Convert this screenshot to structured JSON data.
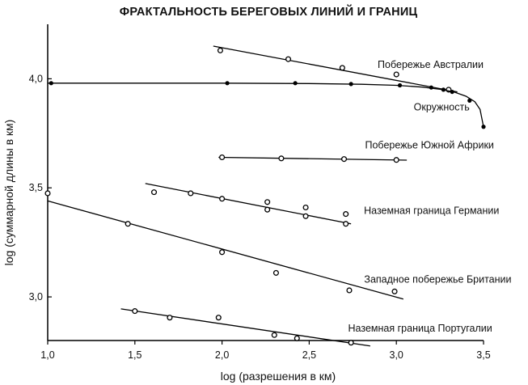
{
  "chart_data": {
    "type": "scatter",
    "title": "ФРАКТАЛЬНОСТЬ БЕРЕГОВЫХ ЛИНИЙ И ГРАНИЦ",
    "xlabel": "log (разрешения в км)",
    "ylabel": "log (суммарной длины в км)",
    "xlim": [
      1.0,
      3.5
    ],
    "ylim": [
      2.8,
      4.25
    ],
    "x_ticks": [
      1.0,
      1.5,
      2.0,
      2.5,
      3.0,
      3.5
    ],
    "x_tick_labels": [
      "1,0",
      "1,5",
      "2,0",
      "2,5",
      "3,0",
      "3,5"
    ],
    "y_ticks": [
      3.0,
      3.5,
      4.0
    ],
    "y_tick_labels": [
      "3,0",
      "3,5",
      "4,0"
    ],
    "grid": false,
    "series": [
      {
        "name": "Побережье Австралии",
        "marker": "open",
        "points": [
          [
            1.99,
            4.13
          ],
          [
            2.38,
            4.09
          ],
          [
            2.69,
            4.05
          ],
          [
            3.0,
            4.02
          ],
          [
            3.3,
            3.95
          ]
        ],
        "fit": [
          [
            1.95,
            4.15
          ],
          [
            3.35,
            3.94
          ]
        ]
      },
      {
        "name": "Окружность",
        "marker": "filled",
        "points": [
          [
            1.02,
            3.98
          ],
          [
            2.03,
            3.98
          ],
          [
            2.42,
            3.98
          ],
          [
            2.74,
            3.976
          ],
          [
            3.02,
            3.97
          ],
          [
            3.2,
            3.96
          ],
          [
            3.27,
            3.95
          ],
          [
            3.32,
            3.94
          ],
          [
            3.42,
            3.9
          ],
          [
            3.5,
            3.78
          ]
        ],
        "curve": [
          [
            1.0,
            3.98
          ],
          [
            1.5,
            3.98
          ],
          [
            2.0,
            3.98
          ],
          [
            2.5,
            3.978
          ],
          [
            2.8,
            3.975
          ],
          [
            3.0,
            3.97
          ],
          [
            3.15,
            3.962
          ],
          [
            3.25,
            3.952
          ],
          [
            3.33,
            3.94
          ],
          [
            3.4,
            3.92
          ],
          [
            3.45,
            3.895
          ],
          [
            3.48,
            3.86
          ],
          [
            3.5,
            3.78
          ]
        ]
      },
      {
        "name": "Побережье Южной Африки",
        "marker": "open",
        "points": [
          [
            2.0,
            3.64
          ],
          [
            2.34,
            3.635
          ],
          [
            2.7,
            3.632
          ],
          [
            3.0,
            3.628
          ]
        ],
        "fit": [
          [
            1.98,
            3.64
          ],
          [
            3.06,
            3.627
          ]
        ]
      },
      {
        "name": "Наземная граница Германии",
        "marker": "open",
        "points": [
          [
            1.61,
            3.48
          ],
          [
            1.82,
            3.475
          ],
          [
            2.0,
            3.45
          ],
          [
            2.26,
            3.435
          ],
          [
            2.26,
            3.4
          ],
          [
            2.48,
            3.41
          ],
          [
            2.48,
            3.37
          ],
          [
            2.71,
            3.38
          ],
          [
            2.71,
            3.335
          ]
        ],
        "fit": [
          [
            1.56,
            3.52
          ],
          [
            2.74,
            3.335
          ]
        ]
      },
      {
        "name": "Западное побережье Британии",
        "marker": "open",
        "points": [
          [
            1.0,
            3.475
          ],
          [
            1.46,
            3.335
          ],
          [
            2.0,
            3.205
          ],
          [
            2.31,
            3.11
          ],
          [
            2.73,
            3.03
          ],
          [
            2.99,
            3.025
          ]
        ],
        "fit": [
          [
            1.0,
            3.44
          ],
          [
            3.04,
            2.99
          ]
        ]
      },
      {
        "name": "Наземная граница Португалии",
        "marker": "open",
        "points": [
          [
            1.5,
            2.935
          ],
          [
            1.7,
            2.905
          ],
          [
            1.98,
            2.905
          ],
          [
            2.3,
            2.825
          ],
          [
            2.43,
            2.81
          ],
          [
            2.74,
            2.79
          ]
        ],
        "fit": [
          [
            1.42,
            2.945
          ],
          [
            2.85,
            2.775
          ]
        ]
      }
    ],
    "annotations": [
      {
        "text": "Побережье Австралии",
        "series": "Побережье Австралии",
        "at": [
          3.5,
          4.05
        ],
        "anchor": "end"
      },
      {
        "text": "Окружность",
        "series": "Окружность",
        "at": [
          3.42,
          3.855
        ],
        "anchor": "end"
      },
      {
        "text": "Побережье Южной Африки",
        "series": "Побережье Южной Африки",
        "at": [
          3.56,
          3.68
        ],
        "anchor": "end"
      },
      {
        "text": "Наземная граница Германии",
        "series": "Наземная граница Германии",
        "at": [
          3.59,
          3.38
        ],
        "anchor": "end"
      },
      {
        "text": "Западное побережье Британии",
        "series": "Западное побережье Британии",
        "at": [
          3.66,
          3.065
        ],
        "anchor": "end"
      },
      {
        "text": "Наземная граница Португалии",
        "series": "Наземная граница Португалии",
        "at": [
          3.55,
          2.84
        ],
        "anchor": "end"
      }
    ]
  }
}
